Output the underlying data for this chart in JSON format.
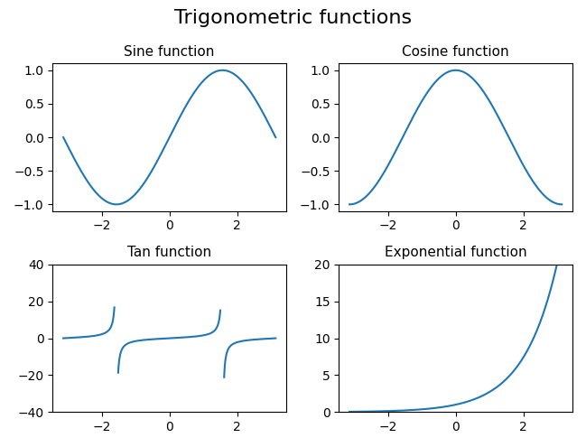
{
  "figure_title": "Trigonometric functions",
  "subplots": [
    {
      "title": "Sine function",
      "func": "sin"
    },
    {
      "title": "Cosine function",
      "func": "cos"
    },
    {
      "title": "Tan function",
      "func": "tan"
    },
    {
      "title": "Exponential function",
      "func": "exp"
    }
  ],
  "x_range": [
    -3.14159265,
    3.14159265
  ],
  "num_points": 500,
  "line_color": "#1f77b4",
  "tan_ylim": [
    -40,
    40
  ],
  "exp_ylim": [
    0,
    20
  ],
  "figsize": [
    6.49,
    4.95
  ],
  "dpi": 100,
  "figure_title_fontsize": 16,
  "subplot_title_fontsize": 11
}
